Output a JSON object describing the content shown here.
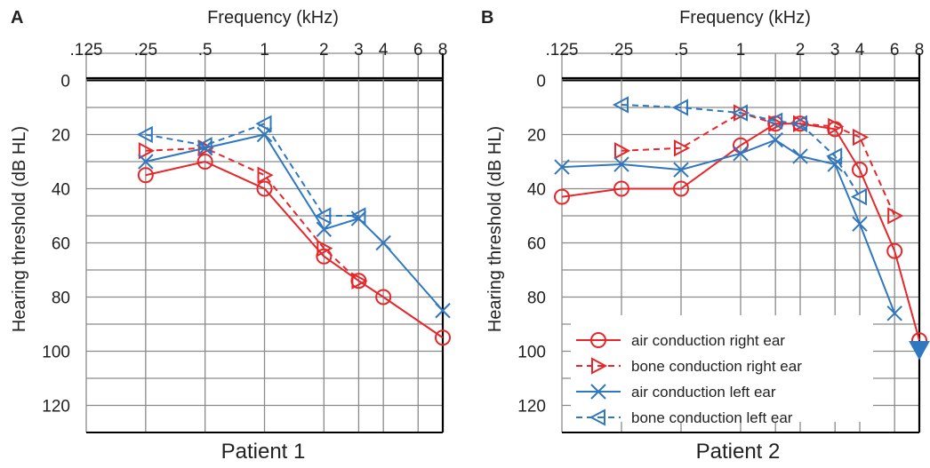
{
  "colors": {
    "red": "#e8262a",
    "blue": "#2f77c0",
    "grid": "#8a8a8a",
    "text": "#222222"
  },
  "chart_data": [
    {
      "type": "line",
      "panel_label": "A",
      "title": "Patient 1",
      "xlabel": "Frequency (kHz)",
      "ylabel": "Hearing threshold (dB HL)",
      "x_scale": "log2",
      "x_ticks": [
        {
          "value": 0.125,
          "label": ".125"
        },
        {
          "value": 0.25,
          "label": ".25"
        },
        {
          "value": 0.5,
          "label": ".5"
        },
        {
          "value": 1,
          "label": "1"
        },
        {
          "value": 2,
          "label": "2"
        },
        {
          "value": 3,
          "label": "3"
        },
        {
          "value": 4,
          "label": "4"
        },
        {
          "value": 6,
          "label": "6"
        },
        {
          "value": 8,
          "label": "8"
        }
      ],
      "y_ticks": [
        0,
        20,
        40,
        60,
        80,
        100,
        120
      ],
      "ylim": [
        -10,
        130
      ],
      "y_inverted": true,
      "grid": true,
      "series": [
        {
          "name": "air conduction right ear",
          "color": "red",
          "dash": false,
          "marker": "circle",
          "x": [
            0.25,
            0.5,
            1,
            2,
            3,
            4,
            8
          ],
          "y": [
            35,
            30,
            40,
            65,
            74,
            80,
            95
          ]
        },
        {
          "name": "bone conduction right ear",
          "color": "red",
          "dash": true,
          "marker": "triangle-right",
          "x": [
            0.25,
            0.5,
            1,
            2,
            3
          ],
          "y": [
            26,
            25,
            35,
            62,
            74
          ]
        },
        {
          "name": "air conduction left ear",
          "color": "blue",
          "dash": false,
          "marker": "x",
          "x": [
            0.25,
            0.5,
            1,
            2,
            3,
            4,
            8
          ],
          "y": [
            30,
            25,
            20,
            55,
            51,
            60,
            85
          ]
        },
        {
          "name": "bone conduction left ear",
          "color": "blue",
          "dash": true,
          "marker": "triangle-left",
          "x": [
            0.25,
            0.5,
            1,
            2,
            3
          ],
          "y": [
            20,
            24,
            16,
            50,
            50
          ]
        }
      ]
    },
    {
      "type": "line",
      "panel_label": "B",
      "title": "Patient 2",
      "xlabel": "Frequency (kHz)",
      "ylabel": "Hearing threshold (dB HL)",
      "x_scale": "log2",
      "x_ticks": [
        {
          "value": 0.125,
          "label": ".125"
        },
        {
          "value": 0.25,
          "label": ".25"
        },
        {
          "value": 0.5,
          "label": ".5"
        },
        {
          "value": 1,
          "label": "1"
        },
        {
          "value": 2,
          "label": "2"
        },
        {
          "value": 3,
          "label": "3"
        },
        {
          "value": 4,
          "label": "4"
        },
        {
          "value": 6,
          "label": "6"
        },
        {
          "value": 8,
          "label": "8"
        }
      ],
      "y_ticks": [
        0,
        20,
        40,
        60,
        80,
        100,
        120
      ],
      "ylim": [
        -10,
        130
      ],
      "y_inverted": true,
      "grid": true,
      "legend_position": "bottom-left",
      "series": [
        {
          "name": "air conduction right ear",
          "color": "red",
          "dash": false,
          "marker": "circle",
          "x": [
            0.125,
            0.25,
            0.5,
            1,
            1.5,
            2,
            3,
            4,
            6,
            8
          ],
          "y": [
            43,
            40,
            40,
            24,
            16,
            16,
            18,
            33,
            63,
            96
          ]
        },
        {
          "name": "bone conduction right ear",
          "color": "red",
          "dash": true,
          "marker": "triangle-right",
          "x": [
            0.25,
            0.5,
            1,
            1.5,
            2,
            3,
            4,
            6
          ],
          "y": [
            26,
            25,
            12,
            16,
            16,
            17,
            21,
            50
          ]
        },
        {
          "name": "air conduction left ear",
          "color": "blue",
          "dash": false,
          "marker": "x",
          "x": [
            0.125,
            0.25,
            0.5,
            1,
            1.5,
            2,
            3,
            4,
            6
          ],
          "y": [
            32,
            31,
            33,
            27,
            22,
            28,
            31,
            53,
            86
          ]
        },
        {
          "name": "bone conduction left ear",
          "color": "blue",
          "dash": true,
          "marker": "triangle-left",
          "x": [
            0.25,
            0.5,
            1,
            1.5,
            2,
            3,
            4
          ],
          "y": [
            9,
            10,
            12,
            15,
            16,
            28,
            43
          ]
        }
      ],
      "extra_markers": [
        {
          "type": "filled-triangle-down",
          "color": "blue",
          "x": 8,
          "y": 100
        }
      ]
    }
  ]
}
